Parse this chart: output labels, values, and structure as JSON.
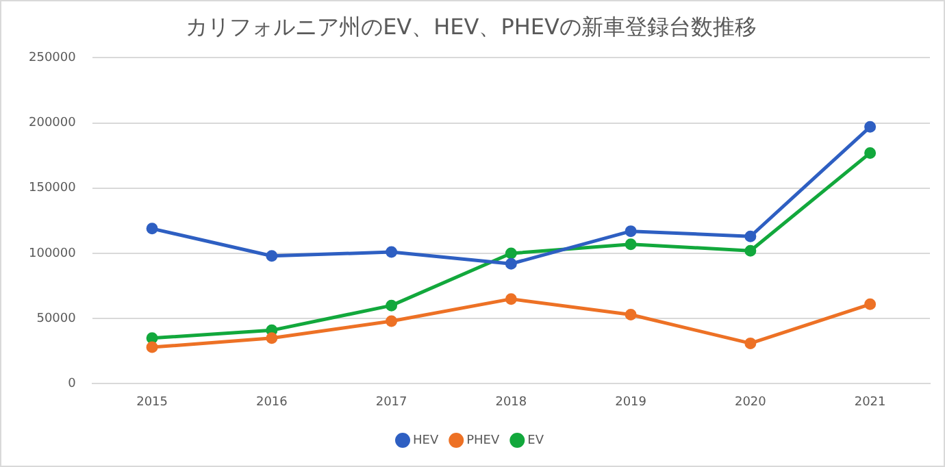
{
  "chart_data": {
    "type": "line",
    "title": "カリフォルニア州のEV、HEV、PHEVの新車登録台数推移",
    "categories": [
      "2015",
      "2016",
      "2017",
      "2018",
      "2019",
      "2020",
      "2021"
    ],
    "series": [
      {
        "name": "HEV",
        "color": "#2e5fc2",
        "values": [
          119000,
          98000,
          101000,
          92000,
          117000,
          113000,
          197000
        ]
      },
      {
        "name": "PHEV",
        "color": "#ed7125",
        "values": [
          28000,
          35000,
          48000,
          65000,
          53000,
          31000,
          61000
        ]
      },
      {
        "name": "EV",
        "color": "#12a83c",
        "values": [
          35000,
          41000,
          60000,
          100000,
          107000,
          102000,
          177000
        ]
      }
    ],
    "ylim": [
      0,
      250000
    ],
    "yticks": [
      0,
      50000,
      100000,
      150000,
      200000,
      250000
    ],
    "grid": "y",
    "legend": "bottom",
    "marker": "circle",
    "line_style": "solid"
  }
}
